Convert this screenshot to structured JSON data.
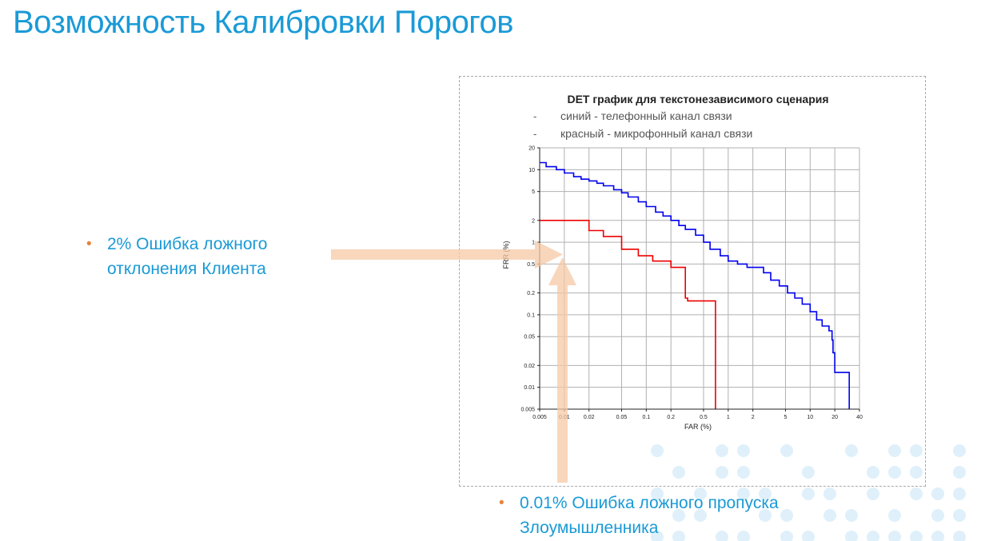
{
  "slide": {
    "title": "Возможность Калибровки Порогов",
    "bullet1_line1": "2% Ошибка ложного",
    "bullet1_line2": "отклонения Клиента",
    "bullet2_line1": "0.01% Ошибка ложного пропуска",
    "bullet2_line2": "Злоумышленника",
    "bullet_marker": "•",
    "colors": {
      "title": "#1a9ad6",
      "bullet_marker": "#e8833a",
      "arrow": "#f6c9a6"
    }
  },
  "chart_data": {
    "type": "line",
    "title": "DET график для текстонезависимого сценария",
    "notes": [
      "синий - телефонный канал связи",
      "красный - микрофонный канал связи"
    ],
    "note_marker": "-",
    "xlabel": "FAR (%)",
    "ylabel": "FRR (%)",
    "x_scale": "log",
    "y_scale": "log",
    "grid": true,
    "xlim": [
      0.005,
      40
    ],
    "ylim": [
      0.005,
      20
    ],
    "x_ticks": [
      0.005,
      0.01,
      0.02,
      0.05,
      0.1,
      0.2,
      0.5,
      1,
      2,
      5,
      10,
      20,
      40
    ],
    "x_tick_labels": [
      "0.005",
      "0.01",
      "0.02",
      "0.05",
      "0.1",
      "0.2",
      "0.5",
      "1",
      "2",
      "5",
      "10",
      "20",
      "40"
    ],
    "y_ticks": [
      0.005,
      0.01,
      0.02,
      0.05,
      0.1,
      0.2,
      0.5,
      1,
      2,
      5,
      10,
      20
    ],
    "y_tick_labels": [
      "0.005",
      "0.01",
      "0.02",
      "0.05",
      "0.1",
      "0.2",
      "0.5",
      "1",
      "2",
      "5",
      "10",
      "20"
    ],
    "series": [
      {
        "color": "#0000ee",
        "x": [
          0.005,
          0.006,
          0.008,
          0.01,
          0.013,
          0.016,
          0.02,
          0.025,
          0.03,
          0.04,
          0.05,
          0.06,
          0.08,
          0.1,
          0.13,
          0.16,
          0.2,
          0.25,
          0.3,
          0.4,
          0.5,
          0.6,
          0.8,
          1.0,
          1.3,
          1.7,
          2.2,
          2.7,
          3.3,
          4.2,
          5.3,
          6.5,
          8.0,
          10,
          12,
          14,
          17,
          18.5,
          19,
          20,
          28,
          30
        ],
        "y": [
          12.5,
          11,
          10,
          9,
          8,
          7.4,
          7,
          6.5,
          6,
          5.3,
          4.8,
          4.2,
          3.6,
          3.1,
          2.6,
          2.3,
          2.0,
          1.7,
          1.5,
          1.25,
          1.0,
          0.8,
          0.65,
          0.55,
          0.5,
          0.45,
          0.45,
          0.38,
          0.3,
          0.25,
          0.2,
          0.17,
          0.14,
          0.11,
          0.085,
          0.07,
          0.06,
          0.045,
          0.03,
          0.016,
          0.016,
          0.005
        ]
      },
      {
        "color": "#ee0000",
        "x": [
          0.005,
          0.02,
          0.02,
          0.03,
          0.03,
          0.05,
          0.05,
          0.08,
          0.08,
          0.12,
          0.12,
          0.2,
          0.2,
          0.3,
          0.3,
          0.32,
          0.32,
          0.7,
          0.7
        ],
        "y": [
          2.0,
          2.0,
          1.45,
          1.45,
          1.2,
          1.2,
          0.8,
          0.8,
          0.65,
          0.65,
          0.55,
          0.55,
          0.45,
          0.45,
          0.17,
          0.17,
          0.155,
          0.155,
          0.005
        ]
      }
    ]
  }
}
